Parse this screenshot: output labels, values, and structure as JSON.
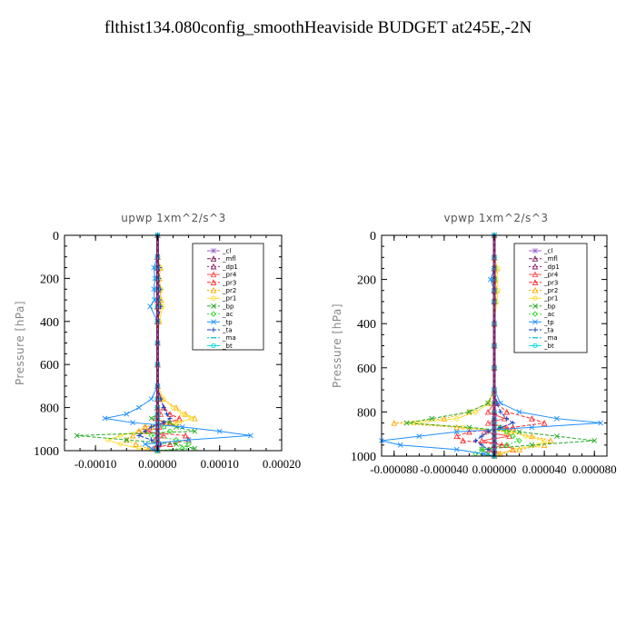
{
  "title": "flthist134.080config_smoothHeaviside  BUDGET at245E,-2N",
  "chart_data": [
    {
      "type": "line",
      "title": "upwp   1xm^2/s^3",
      "ylabel": "Pressure [hPa]",
      "ylim": [
        1000,
        0
      ],
      "xlim": [
        -0.00015,
        0.0002
      ],
      "yticks": [
        "0",
        "200",
        "400",
        "600",
        "800",
        "1000"
      ],
      "xticks": [
        "-0.00010",
        "0.00000",
        "0.00010",
        "0.00020"
      ],
      "xtick_values": [
        -0.0001,
        0,
        0.0001,
        0.0002
      ],
      "pressure": [
        0,
        100,
        150,
        200,
        250,
        300,
        330,
        400,
        500,
        600,
        700,
        760,
        800,
        830,
        850,
        870,
        890,
        910,
        930,
        950,
        970,
        990,
        1000
      ],
      "series": [
        {
          "name": "_cl",
          "color": "#9966cc",
          "marker": "star",
          "values": [
            0,
            0,
            0,
            0,
            0,
            0,
            0,
            0,
            0,
            0,
            0,
            0,
            0,
            0,
            0,
            0,
            0,
            0,
            0,
            0,
            0,
            0,
            0
          ]
        },
        {
          "name": "_mfl",
          "color": "#7a1f5e",
          "marker": "tri",
          "values": [
            0,
            0,
            0,
            0,
            0,
            0,
            0,
            0,
            0,
            0,
            0,
            0,
            0,
            0,
            0,
            0,
            0,
            0,
            0,
            0,
            0,
            0,
            0
          ]
        },
        {
          "name": "_dp1",
          "color": "#8b1a6b",
          "marker": "tri",
          "values": [
            0,
            0,
            0,
            0,
            0,
            0,
            0,
            0,
            0,
            0,
            0,
            0,
            0,
            0,
            0,
            0,
            0,
            0,
            0,
            0,
            0,
            0,
            0
          ]
        },
        {
          "name": "_pr4",
          "color": "#ff4d4d",
          "marker": "tri",
          "values": [
            0,
            0,
            0,
            0,
            0,
            0,
            0,
            0,
            0,
            0,
            0,
            0,
            0,
            5e-06,
            -3e-06,
            1e-05,
            3e-06,
            -1.5e-05,
            1e-05,
            -5e-06,
            3e-06,
            -2e-06,
            0
          ]
        },
        {
          "name": "_pr3",
          "color": "#ff2a2a",
          "marker": "tri",
          "values": [
            0,
            0,
            0,
            0,
            0,
            0,
            0,
            0,
            0,
            0,
            0,
            5e-06,
            1e-05,
            2e-05,
            3.5e-05,
            2e-05,
            -2e-05,
            -3e-05,
            4.5e-05,
            5e-05,
            2e-05,
            -5e-06,
            0
          ]
        },
        {
          "name": "_pr2",
          "color": "#ffaa00",
          "marker": "tri",
          "values": [
            0,
            0,
            5e-06,
            3e-06,
            4e-06,
            6e-06,
            5e-06,
            2e-06,
            0,
            0,
            0,
            8e-06,
            3e-05,
            4.5e-05,
            6e-05,
            3e-05,
            -1e-05,
            -2e-05,
            -4e-05,
            -5e-05,
            -3.5e-05,
            -1.5e-05,
            0
          ]
        },
        {
          "name": "_pr1",
          "color": "#ffdd33",
          "marker": "circ",
          "values": [
            0,
            0,
            4e-06,
            2e-06,
            6e-06,
            5e-06,
            8e-06,
            3e-06,
            0,
            0,
            0,
            1e-05,
            2.5e-05,
            4e-05,
            5.5e-05,
            3.5e-05,
            -2e-05,
            -3e-05,
            -6e-05,
            -8e-05,
            -6e-05,
            -3e-05,
            0
          ]
        },
        {
          "name": "_bp",
          "color": "#22aa22",
          "marker": "cross",
          "values": [
            0,
            0,
            0,
            0,
            0,
            0,
            0,
            0,
            0,
            0,
            0,
            0,
            0,
            0,
            -1e-05,
            2e-05,
            3e-05,
            6e-05,
            -0.00013,
            -5e-05,
            3e-05,
            6e-05,
            0
          ]
        },
        {
          "name": "_ac",
          "color": "#33dd33",
          "marker": "diam",
          "values": [
            0,
            0,
            0,
            0,
            0,
            0,
            0,
            0,
            0,
            0,
            0,
            0,
            0,
            0,
            0,
            0,
            1e-05,
            2e-05,
            -1e-05,
            3e-05,
            5e-05,
            4e-05,
            0
          ]
        },
        {
          "name": "_tp",
          "color": "#1e90ff",
          "marker": "cross",
          "values": [
            0,
            0,
            -6e-06,
            -4e-06,
            -6e-06,
            -5e-06,
            -1.2e-05,
            0,
            0,
            0,
            0,
            -1e-05,
            -3e-05,
            -5e-05,
            -8.5e-05,
            -4e-05,
            4e-05,
            0.0001,
            0.00015,
            5e-05,
            -2e-05,
            -1e-05,
            0
          ]
        },
        {
          "name": "_ta",
          "color": "#1040c0",
          "marker": "plus",
          "values": [
            0,
            0,
            3e-06,
            2e-06,
            4e-06,
            3e-06,
            5e-06,
            0,
            0,
            0,
            0,
            5e-06,
            1e-05,
            1.5e-05,
            2e-05,
            1e-05,
            -1e-05,
            -2e-05,
            -3e-05,
            -1e-05,
            5e-06,
            0,
            0
          ]
        },
        {
          "name": "_ma",
          "color": "#00bcd4",
          "marker": "dash",
          "values": [
            0,
            0,
            0,
            0,
            0,
            0,
            0,
            0,
            0,
            0,
            0,
            0,
            0,
            0,
            0,
            0,
            0,
            0,
            0,
            0,
            0,
            0,
            0
          ]
        },
        {
          "name": "_bt",
          "color": "#00d8e8",
          "marker": "circ",
          "values": [
            0,
            0,
            0,
            0,
            0,
            0,
            0,
            0,
            0,
            0,
            0,
            0,
            0,
            0,
            0,
            0,
            0,
            0,
            0,
            0,
            0,
            0,
            0
          ]
        }
      ]
    },
    {
      "type": "line",
      "title": "vpwp   1xm^2/s^3",
      "ylabel": "Pressure [hPa]",
      "ylim": [
        1000,
        0
      ],
      "xlim": [
        -9e-05,
        9e-05
      ],
      "yticks": [
        "0",
        "200",
        "400",
        "600",
        "800",
        "1000"
      ],
      "xticks": [
        "-0.000080",
        "-0.000040",
        "0.000000",
        "0.000040",
        "0.000080"
      ],
      "xtick_values": [
        -8e-05,
        -4e-05,
        0,
        4e-05,
        8e-05
      ],
      "pressure": [
        0,
        100,
        150,
        200,
        250,
        300,
        400,
        500,
        600,
        700,
        760,
        800,
        830,
        850,
        870,
        890,
        910,
        930,
        950,
        970,
        990,
        1000
      ],
      "series": [
        {
          "name": "_cl",
          "color": "#9966cc",
          "marker": "star",
          "values": [
            0,
            0,
            0,
            0,
            0,
            0,
            0,
            0,
            0,
            0,
            0,
            0,
            0,
            0,
            0,
            0,
            0,
            0,
            0,
            0,
            0,
            0
          ]
        },
        {
          "name": "_mfl",
          "color": "#7a1f5e",
          "marker": "tri",
          "values": [
            0,
            0,
            0,
            0,
            0,
            0,
            0,
            0,
            0,
            0,
            0,
            0,
            0,
            0,
            0,
            0,
            0,
            0,
            0,
            0,
            0,
            0
          ]
        },
        {
          "name": "_dp1",
          "color": "#8b1a6b",
          "marker": "tri",
          "values": [
            0,
            0,
            0,
            0,
            0,
            0,
            0,
            0,
            0,
            0,
            0,
            0,
            0,
            0,
            0,
            0,
            0,
            0,
            0,
            0,
            0,
            0
          ]
        },
        {
          "name": "_pr4",
          "color": "#ff4d4d",
          "marker": "tri",
          "values": [
            0,
            0,
            0,
            0,
            0,
            0,
            0,
            0,
            0,
            0,
            0,
            -5e-06,
            8e-06,
            -5e-06,
            1e-05,
            -8e-06,
            1.2e-05,
            -1e-05,
            6e-06,
            -4e-06,
            3e-06,
            0
          ]
        },
        {
          "name": "_pr3",
          "color": "#ff2a2a",
          "marker": "tri",
          "values": [
            0,
            0,
            0,
            0,
            0,
            0,
            0,
            0,
            0,
            0,
            2e-06,
            1e-05,
            3e-05,
            4e-05,
            1.5e-05,
            -2e-05,
            -3e-05,
            -2.5e-05,
            1e-05,
            1.5e-05,
            5e-06,
            0
          ]
        },
        {
          "name": "_pr2",
          "color": "#ffaa00",
          "marker": "tri",
          "values": [
            0,
            0,
            2e-06,
            1e-06,
            2e-06,
            1e-06,
            0,
            0,
            0,
            0,
            -5e-06,
            -2e-05,
            -4e-05,
            -8e-05,
            -3e-05,
            1e-05,
            3e-05,
            4.5e-05,
            4e-05,
            2e-05,
            5e-06,
            0
          ]
        },
        {
          "name": "_pr1",
          "color": "#ffdd33",
          "marker": "circ",
          "values": [
            0,
            0,
            3e-06,
            2e-06,
            3e-06,
            2e-06,
            0,
            0,
            0,
            0,
            -4e-06,
            -1.5e-05,
            -3e-05,
            -6.5e-05,
            -2.5e-05,
            1.5e-05,
            2.5e-05,
            4e-05,
            3.5e-05,
            1.5e-05,
            4e-06,
            0
          ]
        },
        {
          "name": "_bp",
          "color": "#22aa22",
          "marker": "cross",
          "values": [
            0,
            0,
            0,
            0,
            0,
            0,
            0,
            0,
            0,
            0,
            -5e-06,
            -2e-05,
            -5e-05,
            -7e-05,
            -2e-05,
            2e-05,
            5e-05,
            8e-05,
            3e-05,
            -1e-05,
            -5e-06,
            0
          ]
        },
        {
          "name": "_ac",
          "color": "#33dd33",
          "marker": "diam",
          "values": [
            0,
            0,
            0,
            0,
            0,
            0,
            0,
            0,
            0,
            0,
            0,
            0,
            0,
            0,
            5e-06,
            1e-05,
            1.5e-05,
            2e-05,
            1e-05,
            -1e-05,
            -1.5e-05,
            0
          ]
        },
        {
          "name": "_tp",
          "color": "#1e90ff",
          "marker": "cross",
          "values": [
            0,
            0,
            0,
            -3e-06,
            0,
            0,
            0,
            0,
            0,
            0,
            5e-06,
            2e-05,
            5e-05,
            8.5e-05,
            3e-05,
            -3e-05,
            -6e-05,
            -9e-05,
            -7.5e-05,
            -3e-05,
            -8e-06,
            0
          ]
        },
        {
          "name": "_ta",
          "color": "#1040c0",
          "marker": "plus",
          "values": [
            0,
            0,
            0,
            0,
            0,
            0,
            0,
            0,
            0,
            0,
            2e-06,
            5e-06,
            1e-05,
            1.5e-05,
            5e-06,
            -5e-06,
            -1e-05,
            -1.5e-05,
            -1e-05,
            -5e-06,
            0,
            0
          ]
        },
        {
          "name": "_ma",
          "color": "#00bcd4",
          "marker": "dash",
          "values": [
            0,
            0,
            0,
            0,
            0,
            0,
            0,
            0,
            0,
            0,
            0,
            0,
            0,
            0,
            0,
            0,
            0,
            0,
            0,
            0,
            0,
            0
          ]
        },
        {
          "name": "_bt",
          "color": "#00d8e8",
          "marker": "circ",
          "values": [
            0,
            0,
            0,
            0,
            0,
            0,
            0,
            0,
            0,
            0,
            0,
            0,
            0,
            0,
            0,
            0,
            0,
            0,
            0,
            0,
            0,
            0
          ]
        }
      ]
    }
  ]
}
